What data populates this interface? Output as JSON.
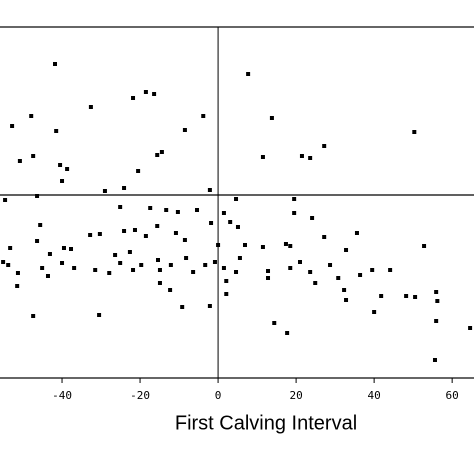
{
  "chart_data": {
    "type": "scatter",
    "x_label": "First Calving Interval",
    "xlim": [
      -55.9,
      65.6
    ],
    "ylim": [
      -18.3,
      16.8
    ],
    "xticks": [
      -40,
      -20,
      0,
      20,
      40,
      60
    ],
    "hlines": [
      0
    ],
    "vlines": [
      0
    ],
    "color": "#000000",
    "x": [
      -41.8,
      -32.6,
      -21.8,
      -18.5,
      -16.4,
      -47.9,
      -52.8,
      -41.5,
      -8.5,
      -3.8,
      7.7,
      13.8,
      50.3,
      -50.8,
      -47.4,
      -40.5,
      -38.7,
      -40,
      -15.6,
      -14.4,
      -20.5,
      11.5,
      21.5,
      23.6,
      27.2,
      -29,
      -24.1,
      -2.1,
      -46.4,
      -54.6,
      4.6,
      19.5,
      19.5,
      -25.1,
      -17.4,
      -13.3,
      -10.3,
      -5.4,
      1.5,
      3.1,
      5.1,
      -45.6,
      -32.8,
      -30.3,
      -24.1,
      -21.3,
      -18.5,
      -15.6,
      -10.8,
      -8.5,
      -1.8,
      0,
      6.9,
      11.5,
      17.4,
      18.5,
      24.1,
      27.2,
      32.8,
      35.6,
      52.8,
      -53.3,
      -46.4,
      -39.5,
      -37.7,
      -43.1,
      -40,
      -45.1,
      -43.6,
      -53.8,
      -55.1,
      -51.3,
      -51.5,
      -36.9,
      -31.5,
      -27.9,
      -25.1,
      -21.8,
      -19.7,
      -14.9,
      -12.1,
      -8.2,
      -6.4,
      -3.3,
      -0.8,
      1.5,
      4.6,
      5.6,
      12.8,
      18.5,
      21,
      23.6,
      24.9,
      28.7,
      30.8,
      32.3,
      32.8,
      36.4,
      39.5,
      44.1,
      41.8,
      48.2,
      50.5,
      55.9,
      56.2,
      2.1,
      2.1,
      12.8,
      -14.9,
      -12.3,
      -9.2,
      -2.1,
      -30.5,
      -47.4,
      40,
      14.4,
      17.7,
      55.9,
      64.6,
      55.6,
      -15.4,
      -22.6,
      -26.4
    ],
    "y": [
      13.1,
      8.8,
      9.7,
      10.3,
      10.1,
      7.9,
      6.9,
      6.4,
      6.5,
      7.9,
      12.1,
      7.7,
      6.3,
      3.4,
      3.9,
      3.0,
      2.6,
      1.4,
      4.0,
      4.3,
      2.4,
      3.8,
      3.9,
      3.7,
      4.9,
      0.4,
      0.7,
      0.5,
      -0.1,
      -0.5,
      -0.4,
      -0.4,
      -1.8,
      -1.2,
      -1.3,
      -1.5,
      -1.7,
      -1.5,
      -1.8,
      -2.7,
      -3.2,
      -3.0,
      -4.0,
      -3.9,
      -3.6,
      -3.5,
      -4.1,
      -3.1,
      -3.8,
      -4.5,
      -2.8,
      -5.0,
      -5.0,
      -5.2,
      -4.9,
      -5.1,
      -2.3,
      -4.2,
      -5.5,
      -3.8,
      -5.1,
      -5.3,
      -4.6,
      -5.3,
      -5.4,
      -5.9,
      -6.8,
      -7.3,
      -8.1,
      -7.0,
      -6.7,
      -7.8,
      -9.1,
      -7.3,
      -7.5,
      -7.8,
      -6.8,
      -7.5,
      -7.0,
      -7.5,
      -7.0,
      -6.3,
      -7.7,
      -7.0,
      -6.7,
      -7.3,
      -7.7,
      -6.3,
      -7.6,
      -7.3,
      -6.7,
      -7.7,
      -8.8,
      -7.0,
      -8.3,
      -9.5,
      -10.5,
      -8.0,
      -7.5,
      -7.5,
      -10.1,
      -10.1,
      -10.2,
      -9.7,
      -10.6,
      -8.6,
      -9.9,
      -8.3,
      -8.8,
      -9.5,
      -11.2,
      -11.1,
      -12.0,
      -12.1,
      -11.7,
      -12.8,
      -13.8,
      -12.6,
      -13.3,
      -16.5,
      -6.5,
      -5.7,
      -6.0
    ]
  }
}
